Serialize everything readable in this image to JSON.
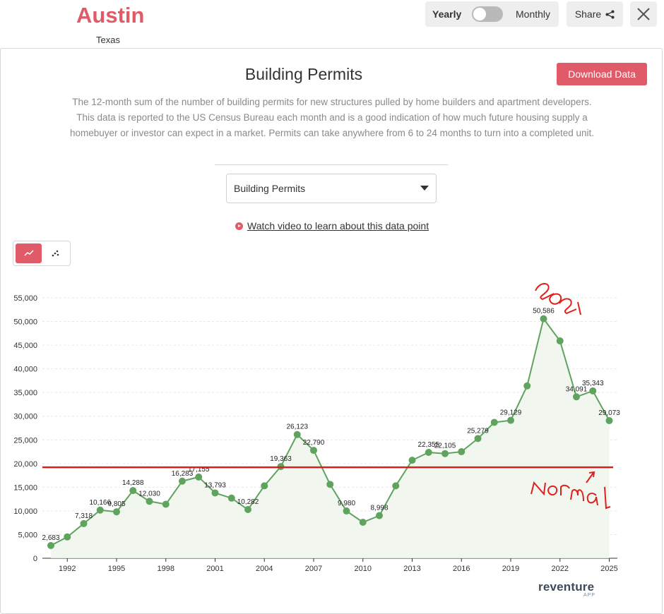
{
  "header": {
    "city": "Austin",
    "state": "Texas",
    "toggle_yearly": "Yearly",
    "toggle_monthly": "Monthly",
    "share_label": "Share"
  },
  "card": {
    "title": "Building Permits",
    "download_label": "Download Data",
    "description": "The 12-month sum of the number of building permits for new structures pulled by home builders and apartment developers. This data is reported to the US Census Bureau each month and is a good indication of how much future housing supply a homebuyer or investor can expect in a market. Permits can take anywhere from 6 to 24 months to turn into a completed unit.",
    "select_value": "Building Permits",
    "video_link": "Watch video to learn about this data point",
    "brand": "reventure",
    "brand_sub": "APP"
  },
  "colors": {
    "accent": "#e05a67",
    "series": "#5fa35f",
    "fill": "#eef6ec",
    "reference": "#d62020",
    "annotation": "#e0201c"
  },
  "chart_data": {
    "type": "line",
    "title": "Building Permits",
    "xlabel": "",
    "ylabel": "",
    "ylim": [
      0,
      55000
    ],
    "yticks": [
      0,
      5000,
      10000,
      15000,
      20000,
      25000,
      30000,
      35000,
      40000,
      45000,
      50000,
      55000
    ],
    "ytick_labels": [
      "0",
      "5,000",
      "10,000",
      "15,000",
      "20,000",
      "25,000",
      "30,000",
      "35,000",
      "40,000",
      "45,000",
      "50,000",
      "55,000"
    ],
    "xtick_labels": [
      "1992",
      "1995",
      "1998",
      "2001",
      "2004",
      "2007",
      "2010",
      "2013",
      "2016",
      "2019",
      "2022",
      "2025"
    ],
    "x": [
      1991,
      1992,
      1993,
      1994,
      1995,
      1996,
      1997,
      1998,
      1999,
      2000,
      2001,
      2002,
      2003,
      2004,
      2005,
      2006,
      2007,
      2008,
      2009,
      2010,
      2011,
      2012,
      2013,
      2014,
      2015,
      2016,
      2017,
      2018,
      2019,
      2020,
      2021,
      2022,
      2023,
      2024,
      2025
    ],
    "values": [
      2683,
      4500,
      7318,
      10166,
      9805,
      14288,
      12030,
      11400,
      16283,
      17155,
      13793,
      12700,
      10282,
      15300,
      19363,
      26123,
      22790,
      15600,
      9980,
      7600,
      8998,
      15300,
      20700,
      22355,
      22105,
      22500,
      25279,
      28700,
      29129,
      36400,
      50586,
      45900,
      34091,
      35343,
      29073
    ],
    "labels": [
      "2,683",
      "",
      "7,318",
      "10,166",
      "9,805",
      "14,288",
      "12,030",
      "",
      "16,283",
      "17,155",
      "13,793",
      "",
      "10,282",
      "",
      "19,363",
      "26,123",
      "22,790",
      "",
      "9,980",
      "",
      "8,998",
      "",
      "",
      "22,355",
      "22,105",
      "",
      "25,279",
      "",
      "29,129",
      "",
      "50,586",
      "",
      "34,091",
      "35,343",
      "29,073"
    ],
    "reference_line": 19363,
    "grid": true,
    "annotations": [
      {
        "text": "2021",
        "style": "handwritten"
      },
      {
        "text": "Normal",
        "style": "handwritten"
      }
    ]
  }
}
